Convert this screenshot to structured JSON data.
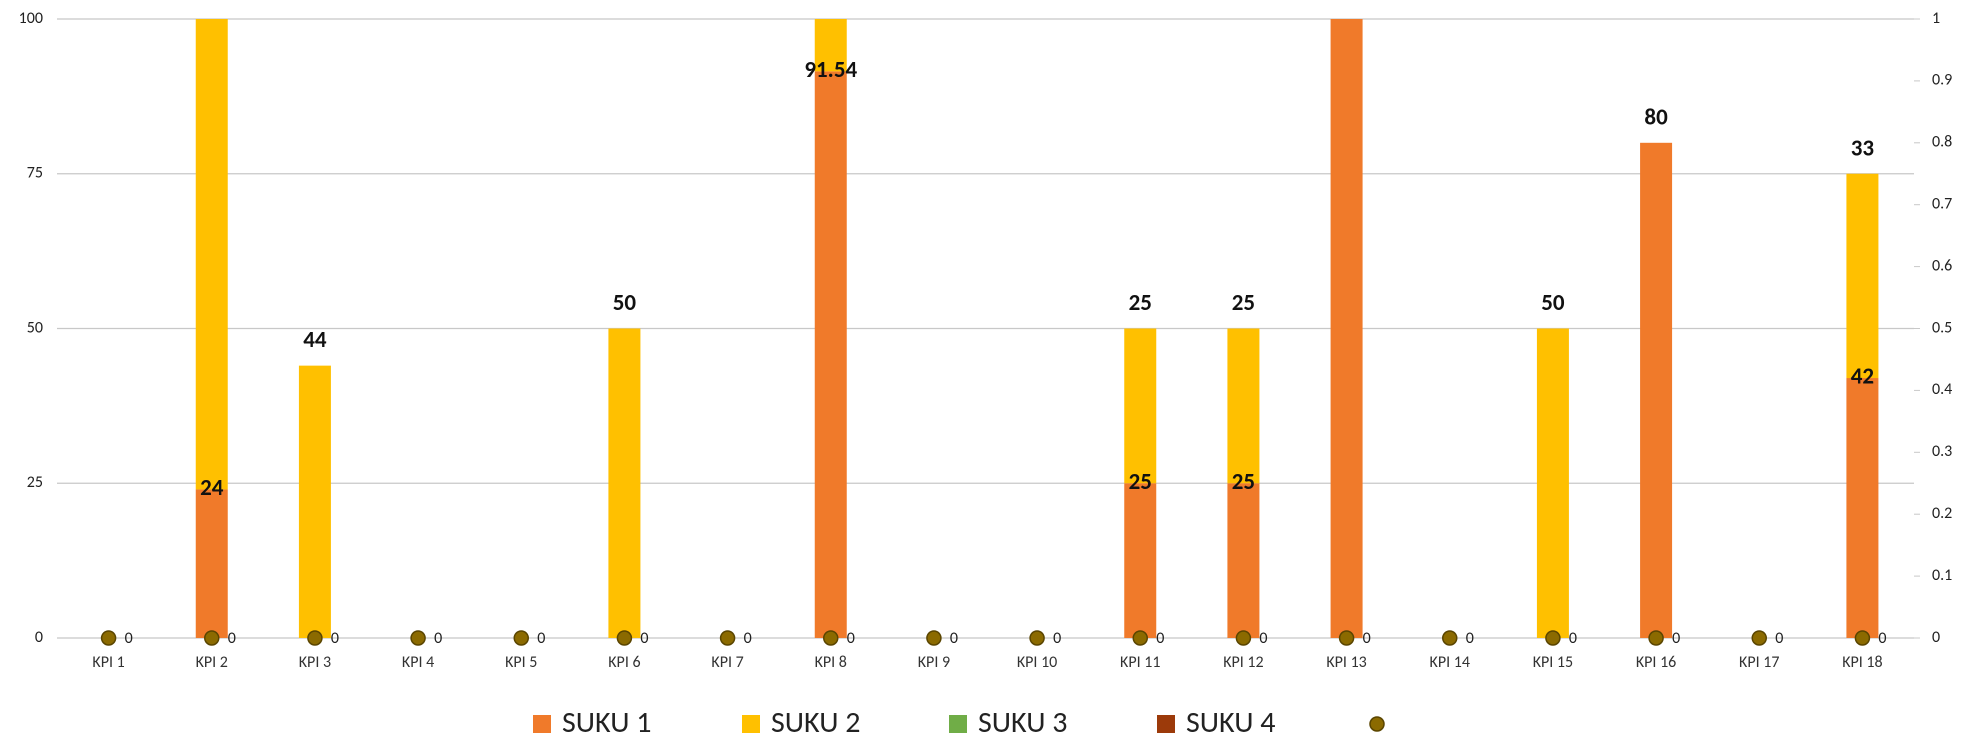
{
  "chart_data": {
    "type": "stacked_bar",
    "categories": [
      "KPI 1",
      "KPI 2",
      "KPI 3",
      "KPI 4",
      "KPI 5",
      "KPI 6",
      "KPI 7",
      "KPI 8",
      "KPI 9",
      "KPI 10",
      "KPI 11",
      "KPI 12",
      "KPI 13",
      "KPI 14",
      "KPI 15",
      "KPI 16",
      "KPI 17",
      "KPI 18"
    ],
    "series": [
      {
        "name": "SUKU 1",
        "color": "#f07a2a",
        "values": [
          null,
          24,
          null,
          null,
          null,
          null,
          null,
          91.54,
          null,
          null,
          25,
          25,
          100,
          null,
          null,
          80,
          null,
          42
        ]
      },
      {
        "name": "SUKU 2",
        "color": "#ffc000",
        "values": [
          null,
          76,
          44,
          null,
          null,
          50,
          null,
          8.46,
          null,
          null,
          25,
          25,
          null,
          null,
          50,
          null,
          null,
          33
        ]
      },
      {
        "name": "SUKU 3",
        "color": "#70ad47",
        "values": [
          null,
          null,
          null,
          null,
          null,
          null,
          null,
          null,
          null,
          null,
          null,
          null,
          null,
          null,
          null,
          null,
          null,
          null
        ]
      },
      {
        "name": "SUKU 4",
        "color": "#9c3a0a",
        "values": [
          null,
          null,
          null,
          null,
          null,
          null,
          null,
          null,
          null,
          null,
          null,
          null,
          null,
          null,
          null,
          null,
          null,
          null
        ]
      },
      {
        "type": "scatter",
        "axis": "y2",
        "color": "#8b6a00",
        "values": [
          0,
          0,
          0,
          0,
          0,
          0,
          0,
          0,
          0,
          0,
          0,
          0,
          0,
          0,
          0,
          0,
          0,
          0
        ]
      }
    ],
    "ylim": [
      0,
      100
    ],
    "yticks": [
      0,
      25,
      50,
      75,
      100
    ],
    "y2lim": [
      0,
      1
    ],
    "y2ticks": [
      0,
      0.1,
      0.2,
      0.3,
      0.4,
      0.5,
      0.6,
      0.7,
      0.8,
      0.9,
      1
    ],
    "grid": true,
    "legend": "bottom"
  }
}
